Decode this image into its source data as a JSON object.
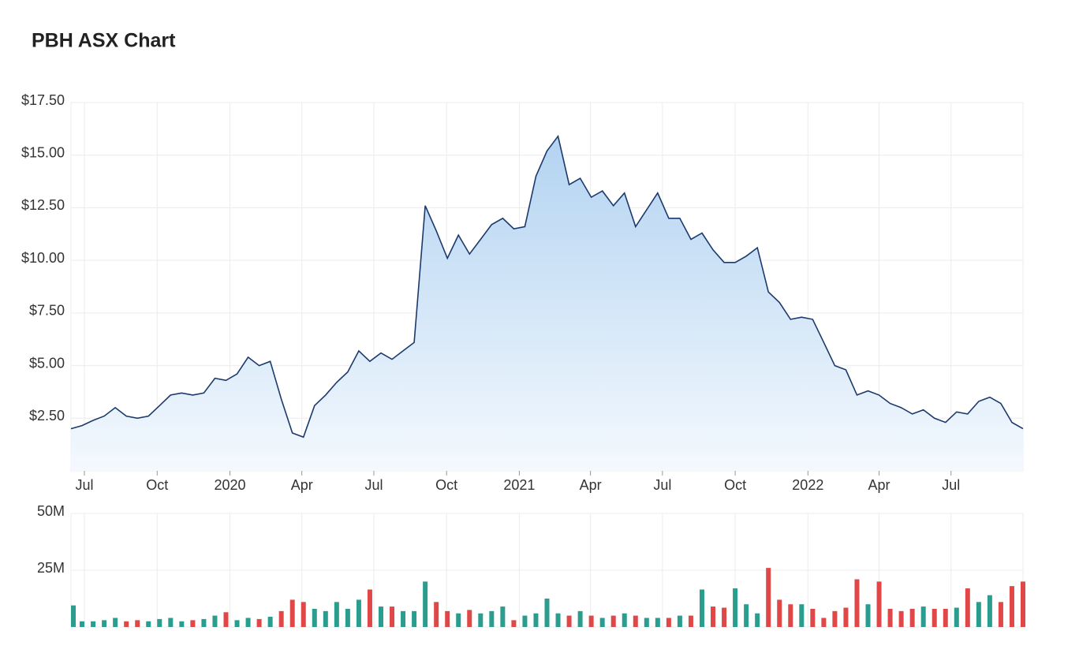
{
  "chart_data": {
    "type": "area",
    "title": "PBH ASX Chart",
    "x": [
      "2019-06-14",
      "2019-06-28",
      "2019-07-12",
      "2019-07-26",
      "2019-08-09",
      "2019-08-23",
      "2019-09-06",
      "2019-09-20",
      "2019-10-04",
      "2019-10-18",
      "2019-11-01",
      "2019-11-15",
      "2019-11-29",
      "2019-12-13",
      "2019-12-27",
      "2020-01-10",
      "2020-01-24",
      "2020-02-07",
      "2020-02-21",
      "2020-03-06",
      "2020-03-20",
      "2020-04-03",
      "2020-04-17",
      "2020-05-01",
      "2020-05-15",
      "2020-05-29",
      "2020-06-12",
      "2020-06-26",
      "2020-07-10",
      "2020-07-24",
      "2020-08-07",
      "2020-08-21",
      "2020-09-04",
      "2020-09-18",
      "2020-10-02",
      "2020-10-16",
      "2020-10-30",
      "2020-11-13",
      "2020-11-27",
      "2020-12-11",
      "2020-12-25",
      "2021-01-08",
      "2021-01-22",
      "2021-02-05",
      "2021-02-19",
      "2021-03-05",
      "2021-03-19",
      "2021-04-02",
      "2021-04-16",
      "2021-04-30",
      "2021-05-14",
      "2021-05-28",
      "2021-06-11",
      "2021-06-25",
      "2021-07-09",
      "2021-07-23",
      "2021-08-06",
      "2021-08-20",
      "2021-09-03",
      "2021-09-17",
      "2021-10-01",
      "2021-10-15",
      "2021-10-29",
      "2021-11-12",
      "2021-11-26",
      "2021-12-10",
      "2021-12-24",
      "2022-01-07",
      "2022-01-21",
      "2022-02-04",
      "2022-02-18",
      "2022-03-04",
      "2022-03-18",
      "2022-04-01",
      "2022-04-15",
      "2022-04-29",
      "2022-05-13",
      "2022-05-27",
      "2022-06-10",
      "2022-06-24",
      "2022-07-08",
      "2022-07-22",
      "2022-08-05",
      "2022-08-19",
      "2022-09-02",
      "2022-09-16",
      "2022-09-30"
    ],
    "series": [
      {
        "type": "area",
        "color": "#1b3a6b",
        "values": [
          2.0,
          2.15,
          2.4,
          2.6,
          3.0,
          2.6,
          2.5,
          2.6,
          3.1,
          3.6,
          3.7,
          3.6,
          3.7,
          4.4,
          4.3,
          4.6,
          5.4,
          5.0,
          5.2,
          3.4,
          1.8,
          1.6,
          3.1,
          3.6,
          4.2,
          4.7,
          5.7,
          5.2,
          5.6,
          5.3,
          5.7,
          6.1,
          12.6,
          11.4,
          10.1,
          11.2,
          10.3,
          11.0,
          11.7,
          12.0,
          11.5,
          11.6,
          14.0,
          15.2,
          15.9,
          13.6,
          13.9,
          13.0,
          13.3,
          12.6,
          13.2,
          11.6,
          12.4,
          13.2,
          12.0,
          12.0,
          11.0,
          11.3,
          10.5,
          9.9,
          9.9,
          10.2,
          10.6,
          8.5,
          8.0,
          7.2,
          7.3,
          7.2,
          6.1,
          5.0,
          4.8,
          3.6,
          3.8,
          3.6,
          3.2,
          3.0,
          2.7,
          2.9,
          2.5,
          2.3,
          2.8,
          2.7,
          3.3,
          3.5,
          3.2,
          2.3,
          2.0
        ]
      },
      {
        "type": "bar",
        "axis": "y2",
        "values": [
          9.5,
          2.5,
          2.5,
          3,
          4,
          2.5,
          3,
          2.5,
          3.5,
          4,
          2.5,
          3,
          3.5,
          5,
          6.5,
          3,
          4,
          3.5,
          4.5,
          7,
          12,
          11,
          8,
          7,
          11,
          8,
          12,
          16.5,
          9,
          9,
          7,
          7,
          20,
          11,
          7,
          6,
          7.5,
          6,
          7,
          9,
          3,
          5,
          6,
          12.5,
          6,
          5,
          7,
          5,
          4,
          5,
          6,
          5,
          4,
          4,
          4,
          5,
          5,
          16.5,
          9,
          8.5,
          17,
          10,
          6,
          26,
          12,
          10,
          10,
          8,
          4,
          7,
          8.5,
          21,
          10,
          20,
          8,
          7,
          8,
          9,
          8,
          8,
          8.5,
          17,
          11,
          14,
          11,
          18,
          20
        ]
      }
    ],
    "up_color": "#2a9d8f",
    "down_color": "#e04848",
    "xlim": [
      "2019-06-14",
      "2022-09-30"
    ],
    "xticks": [
      {
        "value": "2019-07-01",
        "label": "Jul"
      },
      {
        "value": "2019-10-01",
        "label": "Oct"
      },
      {
        "value": "2020-01-01",
        "label": "2020"
      },
      {
        "value": "2020-04-01",
        "label": "Apr"
      },
      {
        "value": "2020-07-01",
        "label": "Jul"
      },
      {
        "value": "2020-10-01",
        "label": "Oct"
      },
      {
        "value": "2021-01-01",
        "label": "2021"
      },
      {
        "value": "2021-04-01",
        "label": "Apr"
      },
      {
        "value": "2021-07-01",
        "label": "Jul"
      },
      {
        "value": "2021-10-01",
        "label": "Oct"
      },
      {
        "value": "2022-01-01",
        "label": "2022"
      },
      {
        "value": "2022-04-01",
        "label": "Apr"
      },
      {
        "value": "2022-07-01",
        "label": "Jul"
      }
    ],
    "ylim": [
      0,
      17.5
    ],
    "yticks": [
      {
        "value": 2.5,
        "label": "$2.50"
      },
      {
        "value": 5,
        "label": "$5.00"
      },
      {
        "value": 7.5,
        "label": "$7.50"
      },
      {
        "value": 10,
        "label": "$10.00"
      },
      {
        "value": 12.5,
        "label": "$12.50"
      },
      {
        "value": 15,
        "label": "$15.00"
      },
      {
        "value": 17.5,
        "label": "$17.50"
      }
    ],
    "y2lim": [
      0,
      50
    ],
    "y2ticks": [
      {
        "value": 25,
        "label": "25M"
      },
      {
        "value": 50,
        "label": "50M"
      }
    ],
    "grid": true
  }
}
